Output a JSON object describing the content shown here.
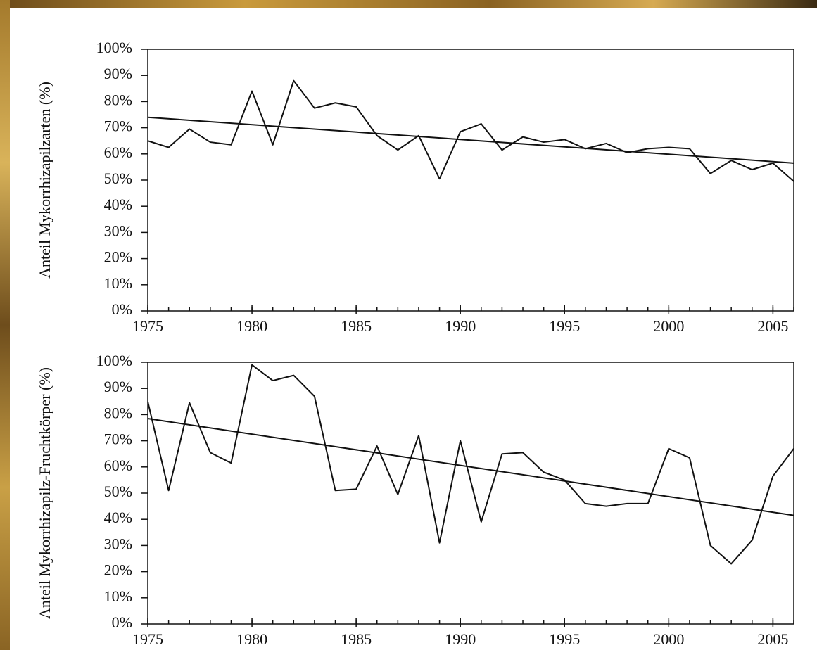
{
  "chart_data": [
    {
      "type": "line",
      "ylabel": "Anteil Mykorrhizapilzarten (%)",
      "x": [
        1975,
        1976,
        1977,
        1978,
        1979,
        1980,
        1981,
        1982,
        1983,
        1984,
        1985,
        1986,
        1987,
        1988,
        1989,
        1990,
        1991,
        1992,
        1993,
        1994,
        1995,
        1996,
        1997,
        1998,
        1999,
        2000,
        2001,
        2002,
        2003,
        2004,
        2005,
        2006
      ],
      "series": [
        {
          "color": "#111111",
          "values": [
            65,
            62.5,
            69.5,
            64.5,
            63.5,
            84,
            63.5,
            88,
            77.5,
            79.5,
            78,
            67,
            61.5,
            67,
            50.5,
            68.5,
            71.5,
            61.5,
            66.5,
            64.5,
            65.5,
            62,
            64,
            60.5,
            62,
            62.5,
            62,
            52.5,
            57.5,
            54,
            56.5,
            49.5
          ]
        }
      ],
      "trend": {
        "color": "#111111",
        "x": [
          1975,
          2006
        ],
        "values": [
          74,
          56.5
        ]
      },
      "xlim": [
        1975,
        2006
      ],
      "xticks": [
        1975,
        1980,
        1985,
        1990,
        1995,
        2000,
        2005
      ],
      "ylim": [
        0,
        100
      ],
      "yticks": [
        {
          "value": 0,
          "label": "0%"
        },
        {
          "value": 10,
          "label": "10%"
        },
        {
          "value": 20,
          "label": "20%"
        },
        {
          "value": 30,
          "label": "30%"
        },
        {
          "value": 40,
          "label": "40%"
        },
        {
          "value": 50,
          "label": "50%"
        },
        {
          "value": 60,
          "label": "60%"
        },
        {
          "value": 70,
          "label": "70%"
        },
        {
          "value": 80,
          "label": "80%"
        },
        {
          "value": 90,
          "label": "90%"
        },
        {
          "value": 100,
          "label": "100%"
        }
      ]
    },
    {
      "type": "line",
      "ylabel": "Anteil Mykorrhizapilz-Fruchtkörper (%)",
      "x": [
        1975,
        1976,
        1977,
        1978,
        1979,
        1980,
        1981,
        1982,
        1983,
        1984,
        1985,
        1986,
        1987,
        1988,
        1989,
        1990,
        1991,
        1992,
        1993,
        1994,
        1995,
        1996,
        1997,
        1998,
        1999,
        2000,
        2001,
        2002,
        2003,
        2004,
        2005,
        2006
      ],
      "series": [
        {
          "color": "#111111",
          "values": [
            85,
            51,
            84.5,
            65.5,
            61.5,
            99,
            93,
            95,
            87,
            51,
            51.5,
            68,
            49.5,
            72,
            31,
            70,
            39,
            65,
            65.5,
            58,
            55,
            46,
            45,
            46,
            46,
            67,
            63.5,
            30,
            23,
            32,
            56.5,
            67
          ]
        }
      ],
      "trend": {
        "color": "#111111",
        "x": [
          1975,
          2006
        ],
        "values": [
          78.5,
          41.5
        ]
      },
      "xlim": [
        1975,
        2006
      ],
      "xticks": [
        1975,
        1980,
        1985,
        1990,
        1995,
        2000,
        2005
      ],
      "ylim": [
        0,
        100
      ],
      "yticks": [
        {
          "value": 0,
          "label": "0%"
        },
        {
          "value": 10,
          "label": "10%"
        },
        {
          "value": 20,
          "label": "20%"
        },
        {
          "value": 30,
          "label": "30%"
        },
        {
          "value": 40,
          "label": "40%"
        },
        {
          "value": 50,
          "label": "50%"
        },
        {
          "value": 60,
          "label": "60%"
        },
        {
          "value": 70,
          "label": "70%"
        },
        {
          "value": 80,
          "label": "80%"
        },
        {
          "value": 90,
          "label": "90%"
        },
        {
          "value": 100,
          "label": "100%"
        }
      ]
    }
  ]
}
